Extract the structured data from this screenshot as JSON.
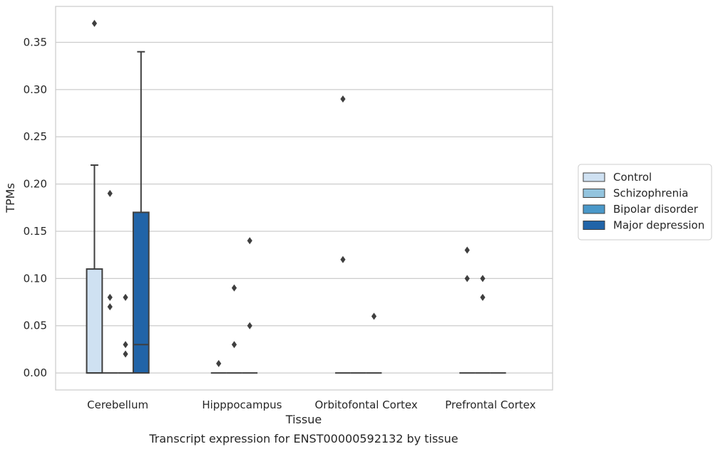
{
  "chart_data": {
    "type": "box",
    "xlabel": "Tissue",
    "ylabel": "TPMs",
    "caption": "Transcript expression for ENST00000592132 by tissue",
    "ylim": [
      -0.018,
      0.388
    ],
    "yticks": [
      0.0,
      0.05,
      0.1,
      0.15,
      0.2,
      0.25,
      0.3,
      0.35
    ],
    "ytick_labels": [
      "0.00",
      "0.05",
      "0.10",
      "0.15",
      "0.20",
      "0.25",
      "0.30",
      "0.35"
    ],
    "grid": "horizontal",
    "legend_placement": "right",
    "categories": [
      "Cerebellum",
      "Hipppocampus",
      "Orbitofontal Cortex",
      "Prefrontal Cortex"
    ],
    "series": [
      {
        "name": "Control",
        "color": "#cfe1f2",
        "boxes": [
          {
            "q1": 0.0,
            "median": 0.0,
            "q3": 0.11,
            "whisker_low": 0.0,
            "whisker_high": 0.22,
            "outliers": [
              0.37
            ]
          },
          {
            "q1": 0.0,
            "median": 0.0,
            "q3": 0.0,
            "whisker_low": 0.0,
            "whisker_high": 0.0,
            "outliers": [
              0.01
            ]
          },
          {
            "q1": 0.0,
            "median": 0.0,
            "q3": 0.0,
            "whisker_low": 0.0,
            "whisker_high": 0.0,
            "outliers": [
              0.29,
              0.12
            ]
          },
          {
            "q1": 0.0,
            "median": 0.0,
            "q3": 0.0,
            "whisker_low": 0.0,
            "whisker_high": 0.0,
            "outliers": [
              0.13,
              0.1
            ]
          }
        ]
      },
      {
        "name": "Schizophrenia",
        "color": "#93c4de",
        "boxes": [
          {
            "q1": 0.0,
            "median": 0.0,
            "q3": 0.0,
            "whisker_low": 0.0,
            "whisker_high": 0.0,
            "outliers": [
              0.19,
              0.08,
              0.07
            ]
          },
          {
            "q1": 0.0,
            "median": 0.0,
            "q3": 0.0,
            "whisker_low": 0.0,
            "whisker_high": 0.0,
            "outliers": [
              0.09,
              0.03
            ]
          },
          {
            "q1": 0.0,
            "median": 0.0,
            "q3": 0.0,
            "whisker_low": 0.0,
            "whisker_high": 0.0,
            "outliers": []
          },
          {
            "q1": 0.0,
            "median": 0.0,
            "q3": 0.0,
            "whisker_low": 0.0,
            "whisker_high": 0.0,
            "outliers": [
              0.1,
              0.08
            ]
          }
        ]
      },
      {
        "name": "Bipolar disorder",
        "color": "#4a98c9",
        "boxes": [
          {
            "q1": 0.0,
            "median": 0.0,
            "q3": 0.0,
            "whisker_low": 0.0,
            "whisker_high": 0.0,
            "outliers": [
              0.08,
              0.03,
              0.02
            ]
          },
          {
            "q1": 0.0,
            "median": 0.0,
            "q3": 0.0,
            "whisker_low": 0.0,
            "whisker_high": 0.0,
            "outliers": [
              0.14,
              0.05
            ]
          },
          {
            "q1": 0.0,
            "median": 0.0,
            "q3": 0.0,
            "whisker_low": 0.0,
            "whisker_high": 0.0,
            "outliers": [
              0.06
            ]
          },
          {
            "q1": 0.0,
            "median": 0.0,
            "q3": 0.0,
            "whisker_low": 0.0,
            "whisker_high": 0.0,
            "outliers": []
          }
        ]
      },
      {
        "name": "Major depression",
        "color": "#2164a8",
        "boxes": [
          {
            "q1": 0.0,
            "median": 0.03,
            "q3": 0.17,
            "whisker_low": 0.0,
            "whisker_high": 0.34,
            "outliers": []
          },
          null,
          null,
          null
        ]
      }
    ]
  }
}
